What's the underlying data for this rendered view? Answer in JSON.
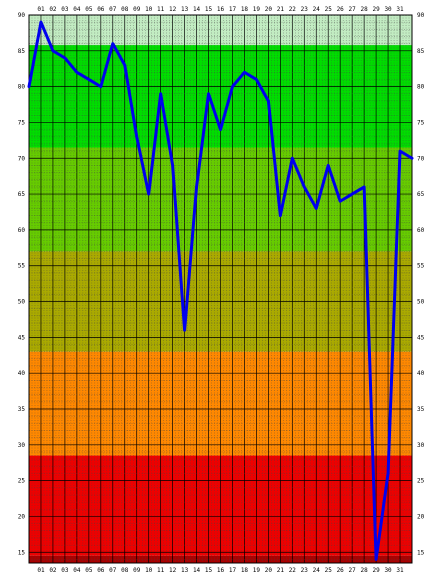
{
  "chart_data": {
    "type": "line",
    "title": "",
    "xlabel": "",
    "ylabel": "",
    "x": [
      "01",
      "02",
      "03",
      "04",
      "05",
      "06",
      "07",
      "08",
      "09",
      "10",
      "11",
      "12",
      "13",
      "14",
      "15",
      "16",
      "17",
      "18",
      "19",
      "20",
      "21",
      "22",
      "23",
      "24",
      "25",
      "26",
      "27",
      "28",
      "29",
      "30",
      "31"
    ],
    "x_positions": [
      1,
      2,
      3,
      4,
      5,
      6,
      7,
      8,
      9,
      10,
      11,
      12,
      13,
      14,
      15,
      16,
      17,
      18,
      19,
      20,
      21,
      22,
      23,
      24,
      25,
      26,
      27,
      28,
      29,
      30,
      31
    ],
    "xlim": [
      0,
      32
    ],
    "ylim": [
      13.5,
      90
    ],
    "y_ticks": [
      15,
      20,
      25,
      30,
      35,
      40,
      45,
      50,
      55,
      60,
      65,
      70,
      75,
      80,
      85,
      90
    ],
    "grid": true,
    "series": [
      {
        "color": "#0000ee",
        "points": [
          [
            0,
            80
          ],
          [
            1,
            89
          ],
          [
            2,
            85
          ],
          [
            3,
            84
          ],
          [
            4,
            82
          ],
          [
            5,
            81
          ],
          [
            6,
            80
          ],
          [
            7,
            86
          ],
          [
            8,
            83
          ],
          [
            9,
            73
          ],
          [
            10,
            65
          ],
          [
            11,
            79
          ],
          [
            12,
            69
          ],
          [
            13,
            46
          ],
          [
            14,
            66
          ],
          [
            15,
            79
          ],
          [
            16,
            74
          ],
          [
            17,
            80
          ],
          [
            18,
            82
          ],
          [
            19,
            81
          ],
          [
            20,
            78
          ],
          [
            21,
            62
          ],
          [
            22,
            70
          ],
          [
            23,
            66
          ],
          [
            24,
            63
          ],
          [
            25,
            69
          ],
          [
            26,
            64
          ],
          [
            27,
            65
          ],
          [
            28,
            66
          ],
          [
            29,
            14
          ],
          [
            30,
            26
          ],
          [
            31,
            71
          ],
          [
            32,
            70
          ]
        ]
      }
    ],
    "bands": [
      {
        "from": 85.8,
        "to": 90,
        "color": "#c2ecc2"
      },
      {
        "from": 71.5,
        "to": 85.8,
        "color": "#00dd00"
      },
      {
        "from": 57,
        "to": 71.5,
        "color": "#66cc00"
      },
      {
        "from": 43,
        "to": 57,
        "color": "#aaaa00"
      },
      {
        "from": 28.5,
        "to": 43,
        "color": "#ff8800"
      },
      {
        "from": 14.5,
        "to": 28.5,
        "color": "#ee0000"
      },
      {
        "from": 13.5,
        "to": 14.5,
        "color": "#aa0000"
      }
    ],
    "grid_colors": {
      "minor": "#444444",
      "major": "#000000"
    }
  }
}
